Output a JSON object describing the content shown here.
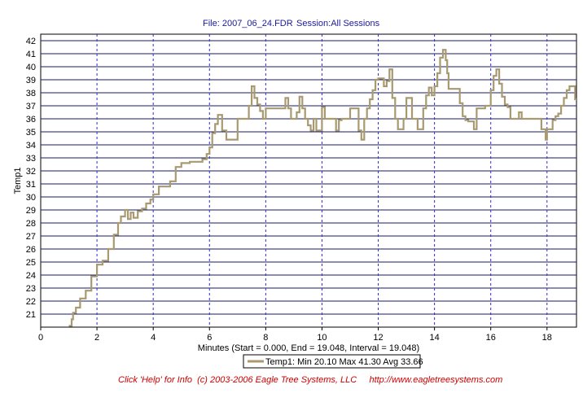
{
  "header": {
    "file_text": "File: 2007_06_24.FDR",
    "session_text": "Session:All Sessions"
  },
  "footer": {
    "text": "Click 'Help' for Info  (c) 2003-2006 Eagle Tree Systems, LLC     http://www.eagletreesystems.com"
  },
  "colors": {
    "series": "#a89a70",
    "hgrid": "#1a1a66",
    "vgrid": "#2b2bd0",
    "title": "#1a1a99",
    "footer": "#cc0000"
  },
  "chart_data": {
    "type": "line",
    "title": "",
    "xlabel": "Minutes (Start = 0.000,  End = 19.048,  Interval = 19.048)",
    "ylabel": "Temp1",
    "xlim": [
      0,
      19.048
    ],
    "ylim": [
      20,
      42.5
    ],
    "x_ticks": [
      0,
      2,
      4,
      6,
      8,
      10,
      12,
      14,
      16,
      18
    ],
    "x_tick_labels": [
      "0",
      "2",
      "4",
      "6",
      "8",
      "10",
      "12",
      "14",
      "16",
      "18"
    ],
    "y_ticks": [
      21,
      22,
      23,
      24,
      25,
      26,
      27,
      28,
      29,
      30,
      31,
      32,
      33,
      34,
      35,
      36,
      37,
      38,
      39,
      40,
      41,
      42
    ],
    "y_tick_labels": [
      "21",
      "22",
      "23",
      "24",
      "25",
      "26",
      "27",
      "28",
      "29",
      "30",
      "31",
      "32",
      "33",
      "34",
      "35",
      "36",
      "37",
      "38",
      "39",
      "40",
      "41",
      "42"
    ],
    "grid": true,
    "legend_position": "bottom-center",
    "series": [
      {
        "name": "Temp1:  Min 20.10 Max 41.30 Avg 33.66",
        "x": [
          1.0,
          1.1,
          1.15,
          1.25,
          1.4,
          1.6,
          1.8,
          2.0,
          2.2,
          2.4,
          2.6,
          2.75,
          2.85,
          3.0,
          3.1,
          3.2,
          3.3,
          3.45,
          3.6,
          3.75,
          3.9,
          4.0,
          4.2,
          4.4,
          4.6,
          4.8,
          5.0,
          5.3,
          5.6,
          5.75,
          5.9,
          6.0,
          6.1,
          6.2,
          6.3,
          6.45,
          6.6,
          6.8,
          7.0,
          7.2,
          7.4,
          7.5,
          7.6,
          7.7,
          7.8,
          7.9,
          8.0,
          8.2,
          8.4,
          8.6,
          8.7,
          8.8,
          8.9,
          9.0,
          9.1,
          9.2,
          9.3,
          9.4,
          9.5,
          9.6,
          9.7,
          9.8,
          9.9,
          10.0,
          10.1,
          10.3,
          10.5,
          10.6,
          10.7,
          10.9,
          11.0,
          11.1,
          11.3,
          11.4,
          11.5,
          11.6,
          11.7,
          11.8,
          11.9,
          12.0,
          12.1,
          12.2,
          12.3,
          12.4,
          12.5,
          12.6,
          12.7,
          12.8,
          12.9,
          13.0,
          13.1,
          13.2,
          13.3,
          13.4,
          13.5,
          13.6,
          13.7,
          13.8,
          13.9,
          14.0,
          14.1,
          14.2,
          14.3,
          14.4,
          14.45,
          14.5,
          14.6,
          14.7,
          14.8,
          14.9,
          15.0,
          15.1,
          15.2,
          15.3,
          15.4,
          15.5,
          15.6,
          15.7,
          15.8,
          16.0,
          16.1,
          16.2,
          16.3,
          16.4,
          16.5,
          16.6,
          16.7,
          16.8,
          16.9,
          17.0,
          17.1,
          17.2,
          17.4,
          17.6,
          17.8,
          17.95,
          18.0,
          18.1,
          18.2,
          18.3,
          18.4,
          18.5,
          18.6,
          18.7,
          18.8,
          18.9,
          19.0
        ],
        "values": [
          20.1,
          20.6,
          21.1,
          21.5,
          22.2,
          22.8,
          23.9,
          24.8,
          25.1,
          26.0,
          27.1,
          28.0,
          28.5,
          29.0,
          28.3,
          28.8,
          28.4,
          28.9,
          29.1,
          29.5,
          29.8,
          30.2,
          30.8,
          30.8,
          31.2,
          32.3,
          32.6,
          32.7,
          32.7,
          32.9,
          33.3,
          33.8,
          34.9,
          35.6,
          36.3,
          35.1,
          34.4,
          34.4,
          36.0,
          36.0,
          37.0,
          38.5,
          37.6,
          37.1,
          36.6,
          36.0,
          36.8,
          36.8,
          36.8,
          36.8,
          37.6,
          36.8,
          36.0,
          36.0,
          36.5,
          37.7,
          36.8,
          36.0,
          35.5,
          35.1,
          36.0,
          35.1,
          35.1,
          36.9,
          36.0,
          36.0,
          35.1,
          35.9,
          36.0,
          36.0,
          36.8,
          36.8,
          35.1,
          34.4,
          36.0,
          36.8,
          37.5,
          38.2,
          39.0,
          39.1,
          39.1,
          38.5,
          38.9,
          39.8,
          37.6,
          36.0,
          35.2,
          35.2,
          36.0,
          37.6,
          37.6,
          36.0,
          36.0,
          35.2,
          35.2,
          36.8,
          37.8,
          38.4,
          37.8,
          38.5,
          39.5,
          40.7,
          41.3,
          40.5,
          39.5,
          38.3,
          38.3,
          38.3,
          38.3,
          37.2,
          36.2,
          35.9,
          35.8,
          35.8,
          35.2,
          36.8,
          36.8,
          36.8,
          37.0,
          38.2,
          39.3,
          39.8,
          38.7,
          37.7,
          37.1,
          36.9,
          36.0,
          36.0,
          36.0,
          36.5,
          36.0,
          36.0,
          36.0,
          36.0,
          35.2,
          34.4,
          35.2,
          35.2,
          35.9,
          36.2,
          36.4,
          37.0,
          37.6,
          38.2,
          38.5,
          38.5,
          37.5
        ]
      }
    ]
  }
}
